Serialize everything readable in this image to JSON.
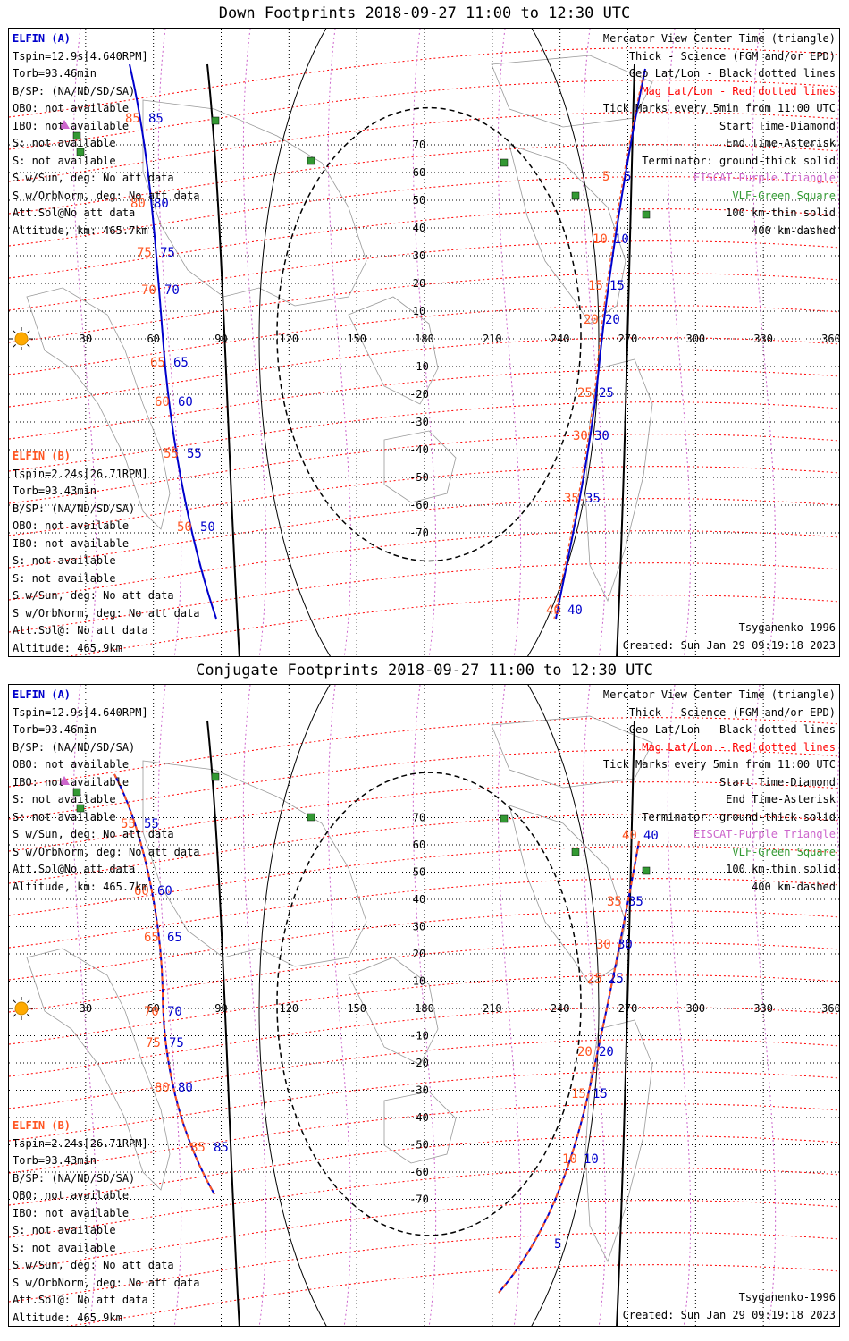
{
  "panels": [
    {
      "title": "Down Footprints 2018-09-27 11:00 to 12:30 UTC",
      "elfin_a": {
        "header": "ELFIN (A)",
        "lines": [
          "Tspin=12.9s[4.640RPM]",
          "Torb=93.46min",
          "B/SP: (NA/ND/SD/SA)",
          "OBO: not available",
          "IBO: not available",
          "S: not available",
          "S: not available",
          "S w/Sun, deg: No att data",
          "S w/OrbNorm, deg: No att data",
          "Att.Sol@No att data",
          "Altitude, km: 465.7km"
        ]
      },
      "elfin_b": {
        "header": "ELFIN (B)",
        "lines": [
          "Tspin=2.24s[26.71RPM]",
          "Torb=93.43min",
          "B/SP: (NA/ND/SD/SA)",
          "OBO: not available",
          "IBO: not available",
          "S: not available",
          "S: not available",
          "S w/Sun, deg: No att data",
          "S w/OrbNorm, deg: No att data",
          "Att.Sol@: No att data",
          "Altitude: 465.9km"
        ]
      },
      "legend": [
        {
          "text": "Mercator View Center Time (triangle)",
          "color": "#000000"
        },
        {
          "text": "Thick - Science (FGM and/or EPD)",
          "color": "#000000"
        },
        {
          "text": "Geo Lat/Lon - Black dotted lines",
          "color": "#000000"
        },
        {
          "text": "Mag Lat/Lon - Red dotted lines",
          "color": "#ff0000"
        },
        {
          "text": "Tick Marks every 5min from 11:00 UTC",
          "color": "#000000"
        },
        {
          "text": "Start Time-Diamond",
          "color": "#000000"
        },
        {
          "text": "End Time-Asterisk",
          "color": "#000000"
        },
        {
          "text": "Terminator: ground-thick solid",
          "color": "#000000"
        },
        {
          "text": "EISCAT-Purple Triangle",
          "color": "#cc66cc"
        },
        {
          "text": "VLF-Green Square",
          "color": "#339933"
        },
        {
          "text": "100 km-thin solid",
          "color": "#000000"
        },
        {
          "text": "400 km-dashed",
          "color": "#000000"
        }
      ],
      "model": "Tsyganenko-1996",
      "created": "Created: Sun Jan 29 09:19:18 2023",
      "ticks_a_left": [
        "85",
        "80",
        "75",
        "70",
        "65",
        "60",
        "55",
        "50"
      ],
      "ticks_b_left": [
        "85",
        "80",
        "75",
        "70",
        "65",
        "60",
        "55",
        "50"
      ],
      "ticks_a_right": [
        "5",
        "10",
        "15",
        "20",
        "25",
        "30",
        "35",
        "40"
      ],
      "ticks_b_right": [
        "5",
        "10",
        "15",
        "20",
        "25",
        "30",
        "35",
        "40"
      ]
    },
    {
      "title": "Conjugate Footprints 2018-09-27 11:00 to 12:30 UTC",
      "elfin_a": {
        "header": "ELFIN (A)",
        "lines": [
          "Tspin=12.9s[4.640RPM]",
          "Torb=93.46min",
          "B/SP: (NA/ND/SD/SA)",
          "OBO: not available",
          "IBO: not available",
          "S: not available",
          "S: not available",
          "S w/Sun, deg: No att data",
          "S w/OrbNorm, deg: No att data",
          "Att.Sol@No att data",
          "Altitude, km: 465.7km"
        ]
      },
      "elfin_b": {
        "header": "ELFIN (B)",
        "lines": [
          "Tspin=2.24s[26.71RPM]",
          "Torb=93.43min",
          "B/SP: (NA/ND/SD/SA)",
          "OBO: not available",
          "IBO: not available",
          "S: not available",
          "S: not available",
          "S w/Sun, deg: No att data",
          "S w/OrbNorm, deg: No att data",
          "Att.Sol@: No att data",
          "Altitude: 465.9km"
        ]
      },
      "legend": [
        {
          "text": "Mercator View Center Time (triangle)",
          "color": "#000000"
        },
        {
          "text": "Thick - Science (FGM and/or EPD)",
          "color": "#000000"
        },
        {
          "text": "Geo Lat/Lon - Black dotted lines",
          "color": "#000000"
        },
        {
          "text": "Mag Lat/Lon - Red dotted lines",
          "color": "#ff0000"
        },
        {
          "text": "Tick Marks every 5min from 11:00 UTC",
          "color": "#000000"
        },
        {
          "text": "Start Time-Diamond",
          "color": "#000000"
        },
        {
          "text": "End Time-Asterisk",
          "color": "#000000"
        },
        {
          "text": "Terminator: ground-thick solid",
          "color": "#000000"
        },
        {
          "text": "EISCAT-Purple Triangle",
          "color": "#cc66cc"
        },
        {
          "text": "VLF-Green Square",
          "color": "#339933"
        },
        {
          "text": "100 km-thin solid",
          "color": "#000000"
        },
        {
          "text": "400 km-dashed",
          "color": "#000000"
        }
      ],
      "model": "Tsyganenko-1996",
      "created": "Created: Sun Jan 29 09:19:18 2023",
      "ticks_a_left": [
        "55",
        "60",
        "65",
        "70",
        "75",
        "80",
        "85"
      ],
      "ticks_b_left": [
        "55",
        "60",
        "65",
        "70",
        "75",
        "80",
        "85"
      ],
      "ticks_a_right": [
        "40",
        "35",
        "30",
        "25",
        "20",
        "15",
        "10",
        "5"
      ],
      "ticks_b_right": [
        "40",
        "35",
        "30",
        "25",
        "20",
        "15",
        "10"
      ]
    }
  ],
  "axes": {
    "lon_labels": [
      "0",
      "30",
      "60",
      "90",
      "120",
      "150",
      "180",
      "210",
      "240",
      "270",
      "300",
      "330",
      "360"
    ],
    "lat_labels": [
      "70",
      "60",
      "50",
      "40",
      "30",
      "20",
      "10",
      "-10",
      "-20",
      "-30",
      "-40",
      "-50",
      "-60",
      "-70"
    ]
  },
  "colors": {
    "elfin_a": "#0000cc",
    "elfin_b": "#ff5522",
    "mag_grid": "#ff0000",
    "geo_grid": "#000000",
    "vlf": "#339933",
    "eiscat": "#cc66cc",
    "sun": "#ffaa00",
    "coast": "#999999"
  }
}
